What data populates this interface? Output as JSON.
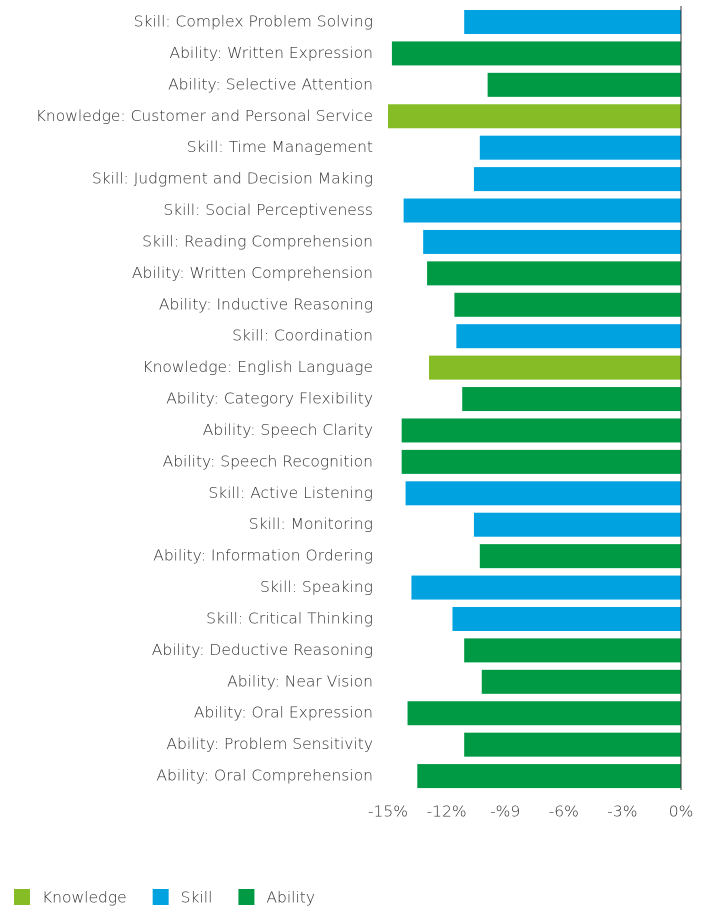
{
  "chart_data": {
    "type": "bar",
    "orientation": "horizontal",
    "categories": [
      "Skill: Complex Problem Solving",
      "Ability: Written Expression",
      "Ability: Selective Attention",
      "Knowledge: Customer and Personal Service",
      "Skill: Time Management",
      "Skill: Judgment and Decision Making",
      "Skill: Social Perceptiveness",
      "Skill: Reading Comprehension",
      "Ability: Written Comprehension",
      "Ability: Inductive Reasoning",
      "Skill: Coordination",
      "Knowledge: English Language",
      "Ability: Category Flexibility",
      "Ability: Speech Clarity",
      "Ability: Speech Recognition",
      "Skill: Active Listening",
      "Skill: Monitoring",
      "Ability: Information Ordering",
      "Skill: Speaking",
      "Skill: Critical Thinking",
      "Ability: Deductive Reasoning",
      "Ability: Near Vision",
      "Ability: Oral Expression",
      "Ability: Problem Sensitivity",
      "Ability: Oral Comprehension"
    ],
    "series": [
      {
        "name": "Knowledge",
        "color": "#86bc25",
        "values": [
          null,
          null,
          null,
          -15.0,
          null,
          null,
          null,
          null,
          null,
          null,
          null,
          -12.9,
          null,
          null,
          null,
          null,
          null,
          null,
          null,
          null,
          null,
          null,
          null,
          null,
          null
        ]
      },
      {
        "name": "Skill",
        "color": "#00a3e0",
        "values": [
          -11.1,
          null,
          null,
          null,
          -10.3,
          -10.6,
          -14.2,
          -13.2,
          null,
          null,
          -11.5,
          null,
          null,
          null,
          null,
          -14.1,
          -10.6,
          null,
          -13.8,
          -11.7,
          null,
          null,
          null,
          null,
          null
        ]
      },
      {
        "name": "Ability",
        "color": "#009a44",
        "values": [
          null,
          -14.8,
          -9.9,
          null,
          null,
          null,
          null,
          null,
          -13.0,
          -11.6,
          null,
          null,
          -11.2,
          -14.3,
          -14.3,
          null,
          null,
          -10.3,
          null,
          null,
          -11.1,
          -10.2,
          -14.0,
          -11.1,
          -13.5
        ]
      }
    ],
    "xlim": [
      -15,
      0
    ],
    "xticks": [
      {
        "value": -15,
        "label": "-15%"
      },
      {
        "value": -12,
        "label": "-12%"
      },
      {
        "value": -9,
        "label": "-%9"
      },
      {
        "value": -6,
        "label": "-6%"
      },
      {
        "value": -3,
        "label": "-3%"
      },
      {
        "value": 0,
        "label": "0%"
      }
    ],
    "legend_position": "bottom-left"
  }
}
